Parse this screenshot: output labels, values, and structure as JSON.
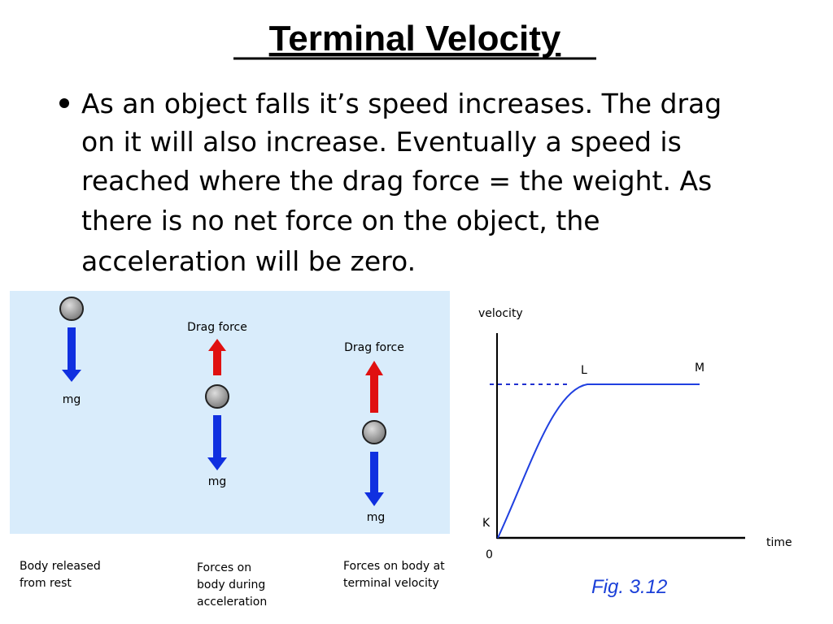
{
  "header": {
    "title": "Terminal Velocity"
  },
  "bullet": {
    "lines": [
      "As an object falls it’s speed increases. The drag",
      "on it will also increase. Eventually a speed is",
      "reached where the drag force = the weight. As",
      "there is no net force on the object, the",
      "acceleration will be zero."
    ]
  },
  "diagram": {
    "panels": [
      {
        "labels": [
          "mg"
        ],
        "caption": [
          "Body released",
          "from rest"
        ]
      },
      {
        "labels": [
          "Drag force",
          "mg"
        ],
        "caption": [
          "Forces on",
          "body during",
          "acceleration"
        ]
      },
      {
        "labels": [
          "Drag force",
          "mg"
        ],
        "caption": [
          "Forces on body at",
          "terminal velocity"
        ]
      }
    ]
  },
  "graph": {
    "y_label": "velocity",
    "x_label": "time",
    "origin": "0",
    "points": [
      "K",
      "L",
      "M"
    ],
    "figure": "Fig. 3.12"
  }
}
